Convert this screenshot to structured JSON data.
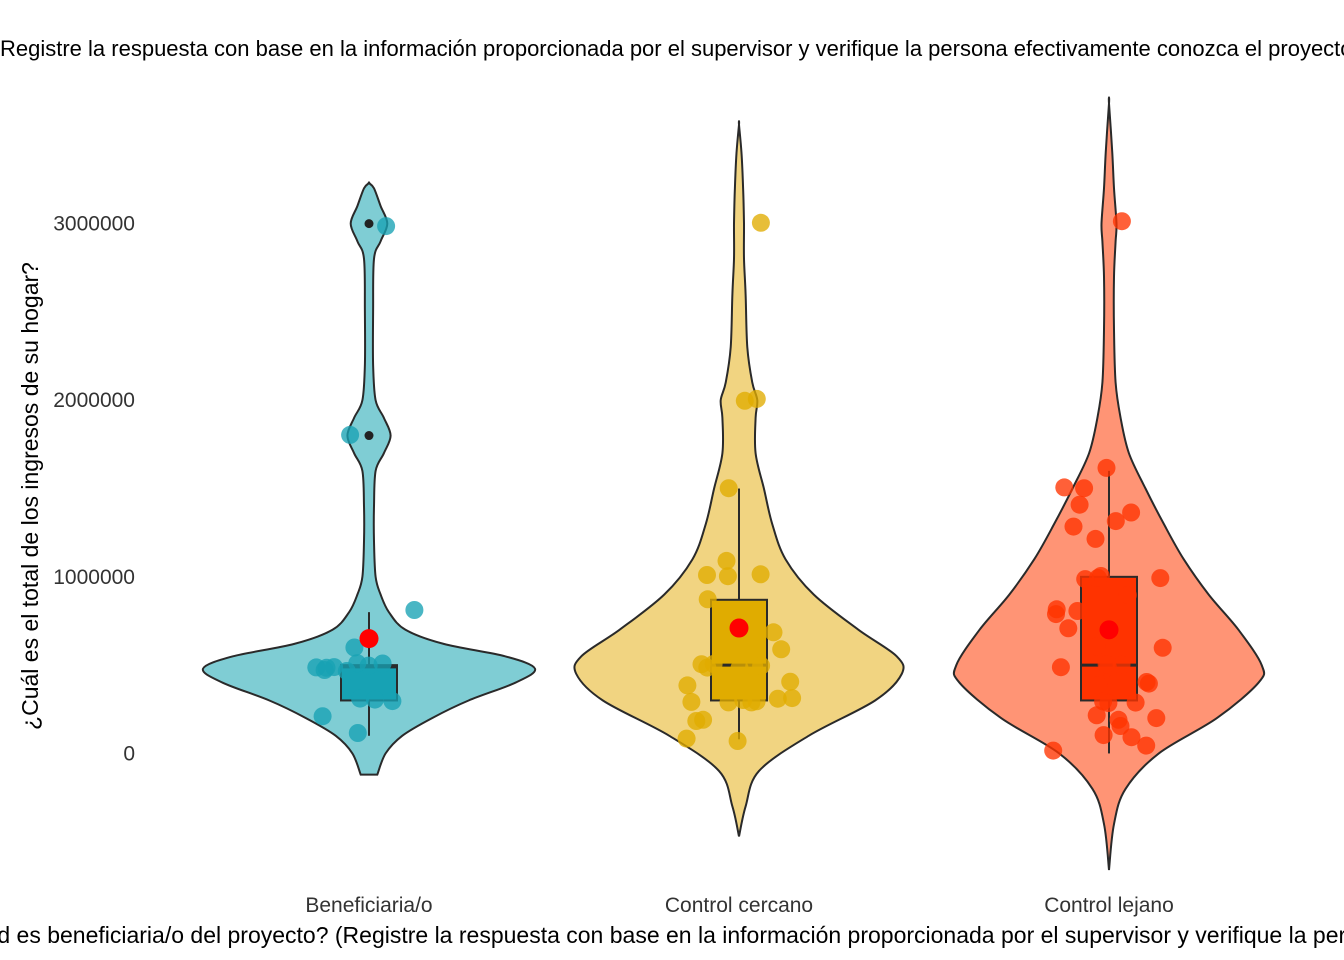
{
  "chart_data": {
    "type": "violin",
    "title": "Registre la respuesta con base en la información proporcionada por el supervisor y verifique la persona efectivamente conozca el proyecto)",
    "xlabel": "¿Usted es beneficiaria/o del proyecto? (Registre la respuesta con base en la información proporcionada por el supervisor y verifique la persona efectivamente conozca el proyecto)",
    "ylabel": "¿Cuál es el total de los ingresos de su hogar?",
    "ylim": [
      -660000,
      3700000
    ],
    "yticks": [
      0,
      1000000,
      2000000,
      3000000
    ],
    "ytick_labels": [
      "0",
      "1000000",
      "2000000",
      "3000000"
    ],
    "grid": false,
    "legend": "none",
    "categories": [
      "Beneficiaria/o",
      "Control cercano",
      "Control lejano"
    ],
    "series": [
      {
        "name": "Beneficiaria/o",
        "color": "#17A2B4",
        "fill": "#7FCDD4",
        "range": [
          -120000,
          3230000
        ],
        "mean": 650000,
        "box": {
          "q1": 300000,
          "median": 490000,
          "q3": 500000,
          "whisker_low": 100000,
          "whisker_high": 800000
        },
        "outliers": [
          1800000,
          3000000
        ],
        "points": [
          3000000,
          1800000,
          800000,
          600000,
          500000,
          500000,
          500000,
          490000,
          480000,
          460000,
          500000,
          500000,
          300000,
          300000,
          300000,
          200000,
          100000
        ],
        "density": [
          [
            -120000,
            0.05
          ],
          [
            0,
            0.1
          ],
          [
            100000,
            0.2
          ],
          [
            200000,
            0.38
          ],
          [
            300000,
            0.6
          ],
          [
            400000,
            0.88
          ],
          [
            480000,
            1.0
          ],
          [
            550000,
            0.82
          ],
          [
            620000,
            0.45
          ],
          [
            700000,
            0.22
          ],
          [
            800000,
            0.12
          ],
          [
            900000,
            0.07
          ],
          [
            1000000,
            0.04
          ],
          [
            1200000,
            0.03
          ],
          [
            1400000,
            0.03
          ],
          [
            1600000,
            0.04
          ],
          [
            1700000,
            0.09
          ],
          [
            1800000,
            0.13
          ],
          [
            1900000,
            0.09
          ],
          [
            2000000,
            0.04
          ],
          [
            2200000,
            0.025
          ],
          [
            2500000,
            0.025
          ],
          [
            2800000,
            0.03
          ],
          [
            2900000,
            0.07
          ],
          [
            3000000,
            0.11
          ],
          [
            3100000,
            0.07
          ],
          [
            3200000,
            0.03
          ],
          [
            3230000,
            0
          ]
        ]
      },
      {
        "name": "Control cercano",
        "color": "#E0AC00",
        "fill": "#F1D481",
        "range": [
          -470000,
          3560000
        ],
        "mean": 710000,
        "box": {
          "q1": 300000,
          "median": 500000,
          "q3": 870000,
          "whisker_low": 80000,
          "whisker_high": 1500000
        },
        "outliers": [],
        "points": [
          3000000,
          2000000,
          2000000,
          1500000,
          1100000,
          1000000,
          1000000,
          1000000,
          880000,
          700000,
          600000,
          500000,
          500000,
          500000,
          500000,
          500000,
          500000,
          400000,
          400000,
          400000,
          300000,
          300000,
          300000,
          300000,
          300000,
          300000,
          300000,
          200000,
          200000,
          100000,
          80000
        ],
        "density": [
          [
            -470000,
            0
          ],
          [
            -300000,
            0.04
          ],
          [
            -100000,
            0.12
          ],
          [
            100000,
            0.42
          ],
          [
            300000,
            0.82
          ],
          [
            450000,
            0.98
          ],
          [
            550000,
            0.95
          ],
          [
            700000,
            0.72
          ],
          [
            900000,
            0.45
          ],
          [
            1100000,
            0.28
          ],
          [
            1300000,
            0.2
          ],
          [
            1500000,
            0.15
          ],
          [
            1700000,
            0.1
          ],
          [
            1900000,
            0.1
          ],
          [
            2000000,
            0.11
          ],
          [
            2100000,
            0.08
          ],
          [
            2300000,
            0.05
          ],
          [
            2600000,
            0.04
          ],
          [
            2800000,
            0.03
          ],
          [
            3000000,
            0.03
          ],
          [
            3200000,
            0.025
          ],
          [
            3400000,
            0.015
          ],
          [
            3560000,
            0
          ]
        ]
      },
      {
        "name": "Control lejano",
        "color": "#FF3300",
        "fill": "#FF9475",
        "range": [
          -660000,
          3680000
        ],
        "mean": 700000,
        "box": {
          "q1": 300000,
          "median": 500000,
          "q3": 1000000,
          "whisker_low": 0,
          "whisker_high": 1600000
        },
        "outliers": [],
        "points": [
          3000000,
          1600000,
          1500000,
          1500000,
          1400000,
          1350000,
          1300000,
          1300000,
          1200000,
          1000000,
          1000000,
          1000000,
          1000000,
          900000,
          800000,
          800000,
          800000,
          700000,
          600000,
          600000,
          500000,
          500000,
          500000,
          500000,
          400000,
          400000,
          400000,
          300000,
          300000,
          300000,
          200000,
          200000,
          200000,
          150000,
          100000,
          100000,
          50000,
          10000
        ],
        "density": [
          [
            -660000,
            0
          ],
          [
            -400000,
            0.03
          ],
          [
            -200000,
            0.1
          ],
          [
            0,
            0.3
          ],
          [
            200000,
            0.65
          ],
          [
            400000,
            0.9
          ],
          [
            500000,
            0.92
          ],
          [
            700000,
            0.78
          ],
          [
            900000,
            0.6
          ],
          [
            1100000,
            0.45
          ],
          [
            1300000,
            0.33
          ],
          [
            1500000,
            0.22
          ],
          [
            1700000,
            0.12
          ],
          [
            1900000,
            0.07
          ],
          [
            2100000,
            0.04
          ],
          [
            2400000,
            0.03
          ],
          [
            2700000,
            0.03
          ],
          [
            2900000,
            0.04
          ],
          [
            3000000,
            0.045
          ],
          [
            3200000,
            0.03
          ],
          [
            3400000,
            0.02
          ],
          [
            3680000,
            0
          ]
        ]
      }
    ]
  }
}
